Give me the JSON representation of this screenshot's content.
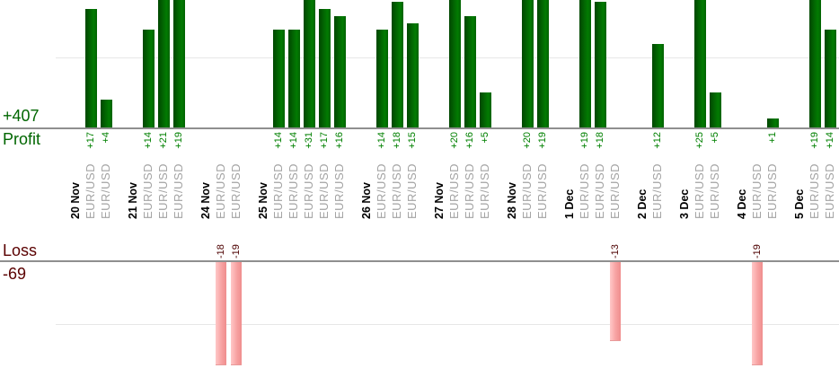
{
  "labels": {
    "profit_total": "+407",
    "profit": "Profit",
    "loss": "Loss",
    "loss_total": "-69"
  },
  "chart_data": {
    "type": "bar",
    "title": "",
    "xlabel": "",
    "ylabel_top": "Profit",
    "ylabel_bottom": "Loss",
    "profit_total": 407,
    "loss_total": -69,
    "grid": "faint horizontal line at +10 (profit pane) and -10 (loss pane)",
    "panes": [
      "profit (green bars above axis)",
      "loss (pink bars below axis)"
    ],
    "groups": [
      {
        "date": "20 Nov",
        "trades": [
          {
            "symbol": "EUR/USD",
            "value": 17
          },
          {
            "symbol": "EUR/USD",
            "value": 4
          }
        ]
      },
      {
        "date": "21 Nov",
        "trades": [
          {
            "symbol": "EUR/USD",
            "value": 14
          },
          {
            "symbol": "EUR/USD",
            "value": 21
          },
          {
            "symbol": "EUR/USD",
            "value": 19
          }
        ]
      },
      {
        "date": "24 Nov",
        "trades": [
          {
            "symbol": "EUR/USD",
            "value": -18
          },
          {
            "symbol": "EUR/USD",
            "value": -19
          }
        ]
      },
      {
        "date": "25 Nov",
        "trades": [
          {
            "symbol": "EUR/USD",
            "value": 14
          },
          {
            "symbol": "EUR/USD",
            "value": 14
          },
          {
            "symbol": "EUR/USD",
            "value": 31
          },
          {
            "symbol": "EUR/USD",
            "value": 17
          },
          {
            "symbol": "EUR/USD",
            "value": 16
          }
        ]
      },
      {
        "date": "26 Nov",
        "trades": [
          {
            "symbol": "EUR/USD",
            "value": 14
          },
          {
            "symbol": "EUR/USD",
            "value": 18
          },
          {
            "symbol": "EUR/USD",
            "value": 15
          }
        ]
      },
      {
        "date": "27 Nov",
        "trades": [
          {
            "symbol": "EUR/USD",
            "value": 20
          },
          {
            "symbol": "EUR/USD",
            "value": 16
          },
          {
            "symbol": "EUR/USD",
            "value": 5
          }
        ]
      },
      {
        "date": "28 Nov",
        "trades": [
          {
            "symbol": "EUR/USD",
            "value": 20
          },
          {
            "symbol": "EUR/USD",
            "value": 19
          }
        ]
      },
      {
        "date": "1 Dec",
        "trades": [
          {
            "symbol": "EUR/USD",
            "value": 19
          },
          {
            "symbol": "EUR/USD",
            "value": 18
          },
          {
            "symbol": "EUR/USD",
            "value": -13
          }
        ]
      },
      {
        "date": "2 Dec",
        "trades": [
          {
            "symbol": "EUR/USD",
            "value": 12
          }
        ]
      },
      {
        "date": "3 Dec",
        "trades": [
          {
            "symbol": "EUR/USD",
            "value": 25
          },
          {
            "symbol": "EUR/USD",
            "value": 5
          }
        ]
      },
      {
        "date": "4 Dec",
        "trades": [
          {
            "symbol": "EUR/USD",
            "value": -19
          },
          {
            "symbol": "EUR/USD",
            "value": 1
          }
        ]
      },
      {
        "date": "5 Dec",
        "trades": [
          {
            "symbol": "EUR/USD",
            "value": 19
          },
          {
            "symbol": "EUR/USD",
            "value": 14
          }
        ]
      }
    ],
    "colors": {
      "profit_bar_gradient": [
        "#014701",
        "#027b02"
      ],
      "loss_bar_gradient": [
        "#ffc8c8",
        "#ef8d8d"
      ],
      "profit_text": "#006600",
      "loss_text": "#5a0000",
      "profit_value_label": "#008000",
      "loss_value_label": "#4d0000",
      "date_label": "#000000",
      "symbol_label": "#a3a3a3",
      "axis_line": "#8f8f8f",
      "gridline": "#e7e7e7"
    }
  }
}
